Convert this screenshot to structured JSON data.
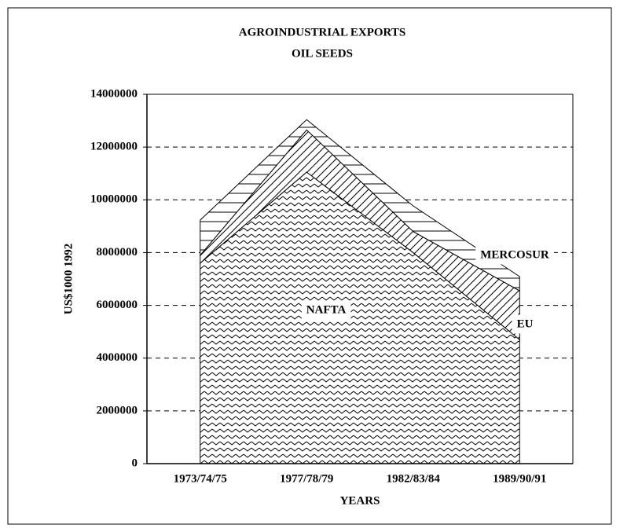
{
  "chart_data": {
    "type": "stacked_area",
    "title": "AGROINDUSTRIAL EXPORTS",
    "subtitle": "OIL  SEEDS",
    "y_label": "US$1000  1992",
    "x_label": "YEARS",
    "categories": [
      "1973/74/75",
      "1977/78/79",
      "1982/83/84",
      "1989/90/91"
    ],
    "series": [
      {
        "name": "NAFTA",
        "color": "#000000",
        "values": [
          7600000,
          11050000,
          8000000,
          4700000
        ]
      },
      {
        "name": "EU",
        "color": "#000000",
        "values": [
          300000,
          1600000,
          800000,
          1850000
        ]
      },
      {
        "name": "MERCOSUR",
        "color": "#000000",
        "values": [
          1330000,
          390000,
          970000,
          540000
        ]
      }
    ],
    "ylim": [
      0,
      14000000
    ],
    "yticks": [
      0,
      2000000,
      4000000,
      6000000,
      8000000,
      10000000,
      12000000,
      14000000
    ],
    "grid": true
  }
}
